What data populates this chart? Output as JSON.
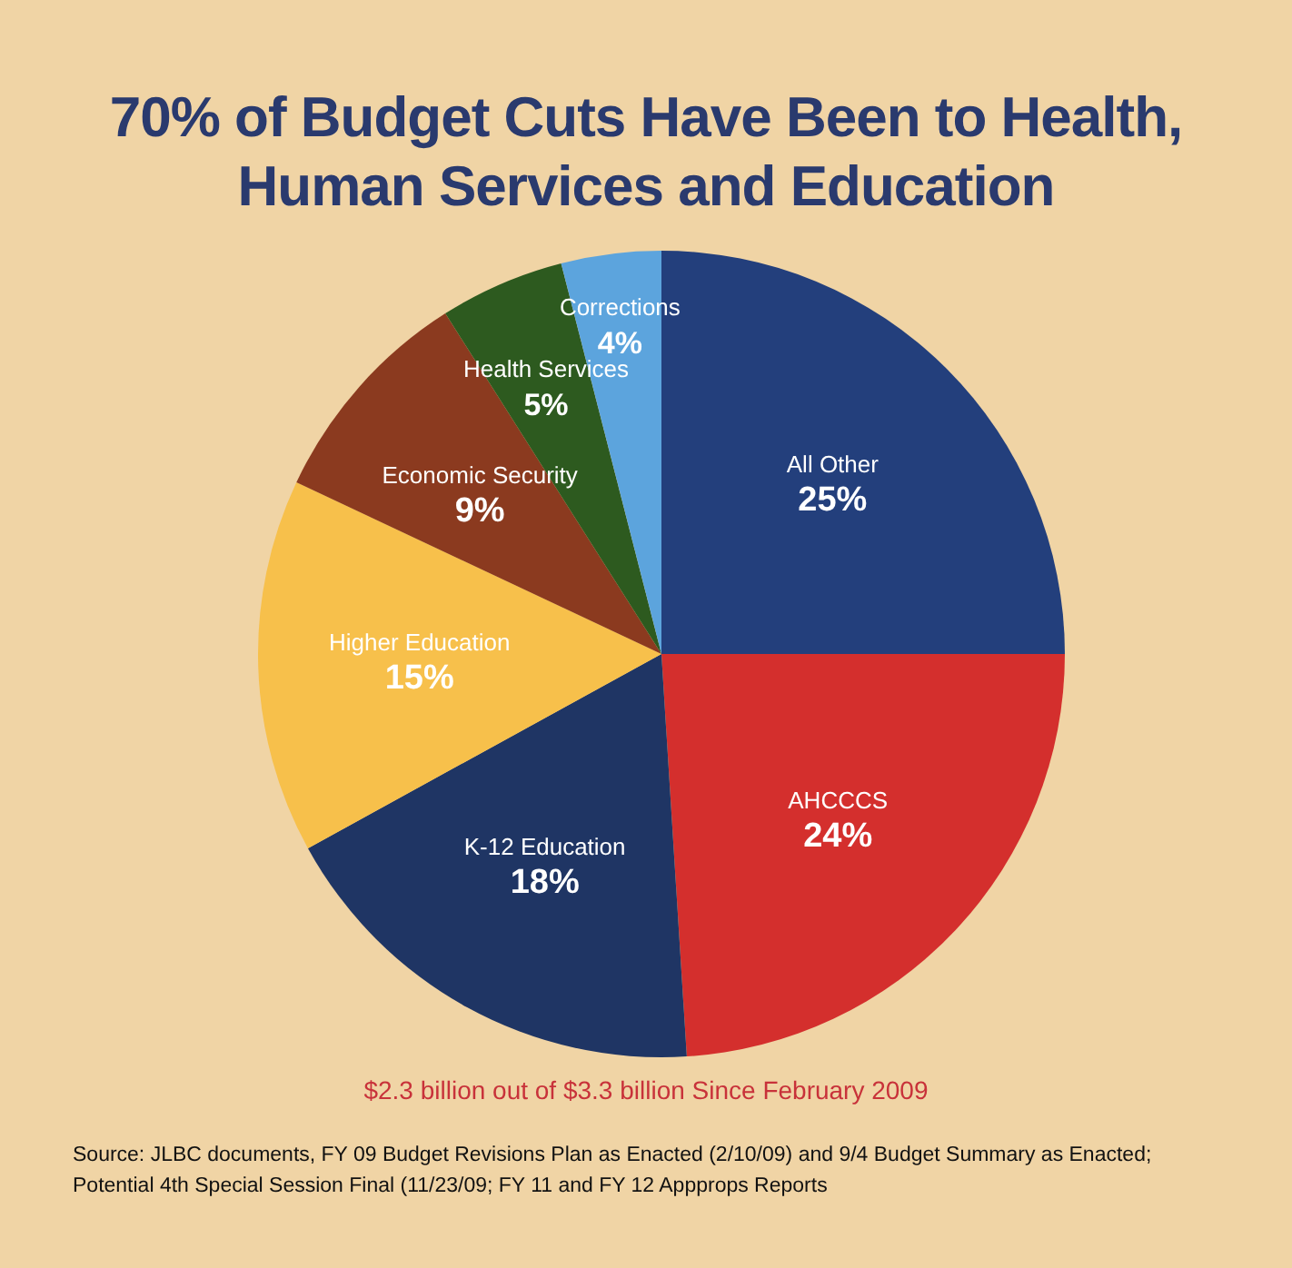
{
  "chart_data": {
    "type": "pie",
    "title": "70% of Budget Cuts Have Been to Health, Human Services and Education",
    "categories": [
      "All Other",
      "AHCCCS",
      "K-12 Education",
      "Higher Education",
      "Economic Security",
      "Health Services",
      "Corrections"
    ],
    "values": [
      25,
      24,
      18,
      15,
      9,
      5,
      4
    ],
    "value_labels": [
      "25%",
      "24%",
      "18%",
      "15%",
      "9%",
      "5%",
      "4%"
    ],
    "colors": [
      "#233f7c",
      "#d42f2d",
      "#1f3564",
      "#f7c04b",
      "#8b3a1f",
      "#2d5a1f",
      "#5ca4dd"
    ],
    "legend": false,
    "annotations": [
      "$2.3 billion out of $3.3 billion Since February 2009",
      "Source: JLBC documents, FY 09 Budget Revisions Plan as Enacted (2/10/09) and 9/4 Budget Summary as Enacted; Potential 4th Special Session Final (11/23/09; FY 11 and FY 12 Appprops Reports"
    ]
  }
}
